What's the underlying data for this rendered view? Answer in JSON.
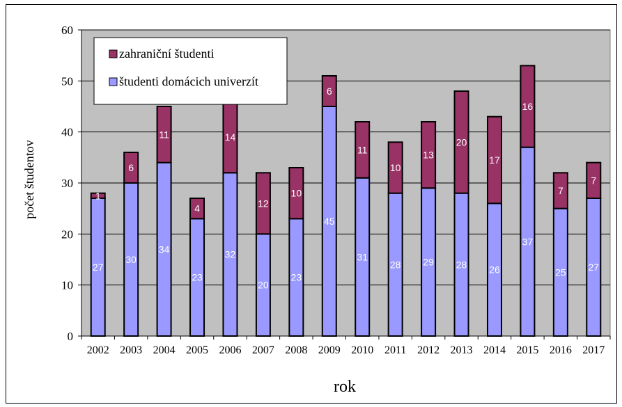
{
  "chart_data": {
    "type": "bar",
    "stacked": true,
    "xlabel": "rok",
    "ylabel": "počet študentov",
    "ylim": [
      0,
      60
    ],
    "yticks": [
      0,
      10,
      20,
      30,
      40,
      50,
      60
    ],
    "grid": true,
    "legend_position": "top-left",
    "categories": [
      "2002",
      "2003",
      "2004",
      "2005",
      "2006",
      "2007",
      "2008",
      "2009",
      "2010",
      "2011",
      "2012",
      "2013",
      "2014",
      "2015",
      "2016",
      "2017"
    ],
    "series": [
      {
        "name": "študenti domácich univerzít",
        "color": "#9999ff",
        "values": [
          27,
          30,
          34,
          23,
          32,
          20,
          23,
          45,
          31,
          28,
          29,
          28,
          26,
          37,
          25,
          27
        ]
      },
      {
        "name": "zahraniční študenti",
        "color": "#993366",
        "values": [
          1,
          6,
          11,
          4,
          14,
          12,
          10,
          6,
          11,
          10,
          13,
          20,
          17,
          16,
          7,
          7
        ]
      }
    ],
    "legend_order": [
      1,
      0
    ],
    "plot_background": "#c0c0c0"
  }
}
